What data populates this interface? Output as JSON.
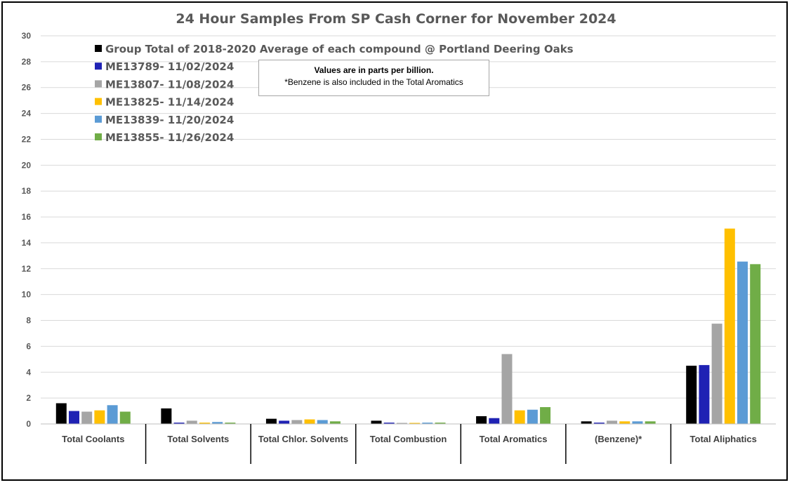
{
  "chart_data": {
    "type": "bar",
    "title": "24 Hour Samples From SP Cash Corner for November 2024",
    "categories": [
      "Total Coolants",
      "Total Solvents",
      "Total Chlor. Solvents",
      "Total Combustion",
      "Total Aromatics",
      "(Benzene)*",
      "Total Aliphatics"
    ],
    "ylim": [
      0,
      30
    ],
    "yticks": [
      0,
      2,
      4,
      6,
      8,
      10,
      12,
      14,
      16,
      18,
      20,
      22,
      24,
      26,
      28,
      30
    ],
    "grid": true,
    "legend_position": "top-left",
    "series": [
      {
        "name": "Group Total of 2018-2020 Average of each compound @ Portland Deering Oaks",
        "color": "#000000",
        "values": [
          1.6,
          1.2,
          0.4,
          0.25,
          0.6,
          0.2,
          4.5
        ]
      },
      {
        "name": "ME13789- 11/02/2024",
        "color": "#1f22b4",
        "values": [
          1.0,
          0.1,
          0.25,
          0.1,
          0.45,
          0.1,
          4.55
        ]
      },
      {
        "name": "ME13807- 11/08/2024",
        "color": "#a5a5a5",
        "values": [
          0.95,
          0.25,
          0.3,
          0.08,
          5.4,
          0.25,
          7.75
        ]
      },
      {
        "name": "ME13825- 11/14/2024",
        "color": "#ffc000",
        "values": [
          1.05,
          0.1,
          0.35,
          0.08,
          1.05,
          0.2,
          15.1
        ]
      },
      {
        "name": "ME13839- 11/20/2024",
        "color": "#5b9bd5",
        "values": [
          1.45,
          0.15,
          0.3,
          0.1,
          1.1,
          0.2,
          12.55
        ]
      },
      {
        "name": "ME13855- 11/26/2024",
        "color": "#70ad47",
        "values": [
          0.95,
          0.1,
          0.2,
          0.1,
          1.3,
          0.2,
          12.35
        ]
      }
    ]
  },
  "note": {
    "line1": "Values are in parts per billion.",
    "line2": "*Benzene is also included in the Total Aromatics"
  }
}
